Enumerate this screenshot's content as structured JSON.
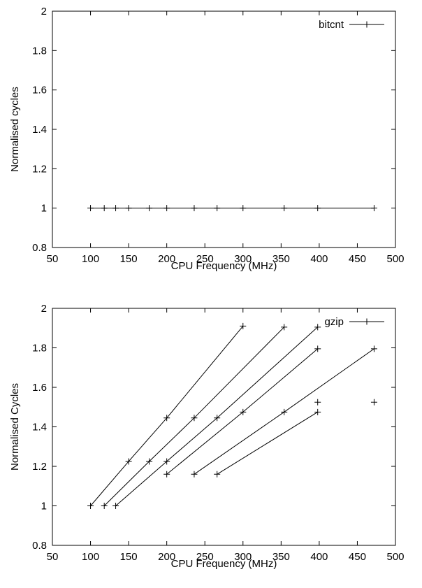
{
  "chart_data": [
    {
      "type": "line",
      "xlabel": "CPU Frequency (MHz)",
      "ylabel": "Normalised cycles",
      "xlim": [
        50,
        500
      ],
      "ylim": [
        0.8,
        2
      ],
      "xticks": [
        "50",
        "100",
        "150",
        "200",
        "250",
        "300",
        "350",
        "400",
        "450",
        "500"
      ],
      "yticks": [
        "0.8",
        "1",
        "1.2",
        "1.4",
        "1.6",
        "1.8",
        "2"
      ],
      "legend_position": "top-right",
      "series": [
        {
          "name": "bitcnt",
          "points": [
            [
              100,
              1.0
            ],
            [
              118,
              1.0
            ],
            [
              133,
              1.0
            ],
            [
              150,
              1.0
            ],
            [
              177,
              1.0
            ],
            [
              200,
              1.0
            ],
            [
              236,
              1.0
            ],
            [
              266,
              1.0
            ],
            [
              300,
              1.0
            ],
            [
              354,
              1.0
            ],
            [
              398,
              1.0
            ],
            [
              472,
              1.0
            ]
          ]
        }
      ]
    },
    {
      "type": "line",
      "xlabel": "CPU Frequency (MHz)",
      "ylabel": "Normalised Cycles",
      "xlim": [
        50,
        500
      ],
      "ylim": [
        0.8,
        2
      ],
      "xticks": [
        "50",
        "100",
        "150",
        "200",
        "250",
        "300",
        "350",
        "400",
        "450",
        "500"
      ],
      "yticks": [
        "0.8",
        "1",
        "1.2",
        "1.4",
        "1.6",
        "1.8",
        "2"
      ],
      "legend_position": "top-right",
      "series": [
        {
          "name": "gzip",
          "points": [
            [
              100,
              1.0
            ],
            [
              150,
              1.225
            ],
            [
              200,
              1.445
            ],
            [
              300,
              1.91
            ]
          ]
        },
        {
          "name": "",
          "points": [
            [
              118,
              1.0
            ],
            [
              177,
              1.225
            ],
            [
              236,
              1.445
            ],
            [
              354,
              1.905
            ]
          ]
        },
        {
          "name": "",
          "points": [
            [
              133,
              1.0
            ],
            [
              200,
              1.225
            ],
            [
              266,
              1.445
            ],
            [
              398,
              1.905
            ]
          ]
        },
        {
          "name": "",
          "points": [
            [
              200,
              1.16
            ],
            [
              300,
              1.475
            ],
            [
              398,
              1.795
            ]
          ]
        },
        {
          "name": "",
          "points": [
            [
              236,
              1.16
            ],
            [
              354,
              1.475
            ],
            [
              472,
              1.795
            ]
          ]
        },
        {
          "name": "",
          "points": [
            [
              266,
              1.16
            ],
            [
              398,
              1.475
            ]
          ]
        },
        {
          "name": "",
          "points": [
            [
              398,
              1.525
            ]
          ]
        },
        {
          "name": "",
          "points": [
            [
              472,
              1.525
            ]
          ]
        }
      ]
    }
  ]
}
